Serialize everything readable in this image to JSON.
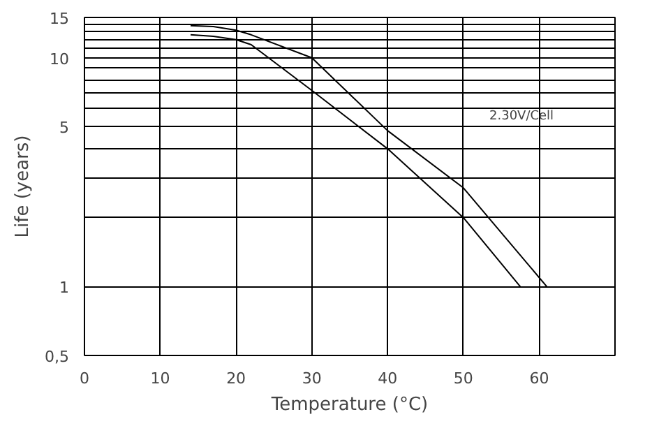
{
  "chart_data": {
    "type": "line",
    "xlabel": "Temperature (°C)",
    "ylabel": "Life (years)",
    "log": "y",
    "xlim": [
      0,
      70
    ],
    "xticks": [
      0,
      10,
      20,
      30,
      40,
      50,
      60
    ],
    "ylim": [
      0.5,
      15
    ],
    "yticks": [
      {
        "value": 0.5,
        "label": "0,5"
      },
      1,
      {
        "value": 2,
        "label": null
      },
      {
        "value": 3,
        "label": null
      },
      {
        "value": 4,
        "label": null
      },
      5,
      {
        "value": 6,
        "label": null
      },
      {
        "value": 7,
        "label": null
      },
      {
        "value": 8,
        "label": null
      },
      {
        "value": 9,
        "label": null
      },
      10,
      {
        "value": 11,
        "label": null
      },
      {
        "value": 12,
        "label": null
      },
      {
        "value": 13,
        "label": null
      },
      {
        "value": 14,
        "label": null
      },
      15
    ],
    "grid": true,
    "marker": "none",
    "line_style": "solid",
    "series": [
      {
        "color": "#000000",
        "x": [
          14,
          17,
          20,
          22,
          30,
          40,
          50,
          61
        ],
        "values": [
          13.8,
          13.7,
          13.2,
          12.6,
          10,
          4.8,
          2.7,
          1
        ]
      },
      {
        "color": "#000000",
        "x": [
          14,
          17,
          20,
          22,
          30,
          40,
          50,
          57.5
        ],
        "values": [
          12.6,
          12.4,
          12,
          11.4,
          7.2,
          4,
          2,
          1
        ]
      }
    ],
    "annotations": [
      "2.30V/Cell"
    ]
  }
}
